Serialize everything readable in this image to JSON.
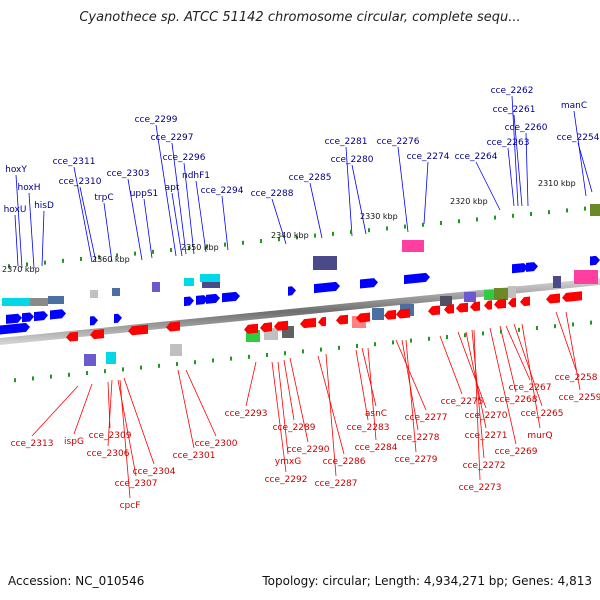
{
  "title": "Cyanothece sp. ATCC 51142 chromosome circular, complete sequ...",
  "accession": "Accession: NC_010546",
  "topology": "Topology: circular; Length: 4,934,271 bp; Genes: 4,813",
  "colors": {
    "forward": "#0000ff",
    "reverse": "#ff0000",
    "label_forward": "#00008b",
    "label_reverse": "#cc0000",
    "backbone": "#808080"
  },
  "tick_labels": [
    "2370 kbp",
    "2360 kbp",
    "2350 kbp",
    "2340 kbp",
    "2330 kbp",
    "2320 kbp",
    "2310 kbp"
  ],
  "top_labels": [
    "hoxY",
    "hoxH",
    "hoxU",
    "hisD",
    "cce_2311",
    "cce_2310",
    "trpC",
    "cce_2303",
    "uppS1",
    "cce_2299",
    "cce_2297",
    "cce_2296",
    "apt",
    "ndhF1",
    "cce_2294",
    "cce_2288",
    "cce_2285",
    "cce_2281",
    "cce_2280",
    "cce_2276",
    "cce_2274",
    "cce_2264",
    "cce_2263",
    "cce_2262",
    "cce_2261",
    "cce_2260",
    "manC",
    "cce_2254"
  ],
  "bottom_labels": [
    "cce_2313",
    "ispG",
    "cce_2309",
    "cce_2306",
    "cce_2307",
    "cpcF",
    "cce_2304",
    "cce_2301",
    "cce_2300",
    "cce_2293",
    "cce_2290",
    "cce_2289",
    "ymxG",
    "cce_2292",
    "cce_2286",
    "cce_2287",
    "cce_2283",
    "asnC",
    "cce_2284",
    "cce_2277",
    "cce_2278",
    "cce_2279",
    "cce_2275",
    "cce_2270",
    "cce_2271",
    "cce_2272",
    "cce_2273",
    "cce_2269",
    "cce_2268",
    "cce_2267",
    "cce_2265",
    "murQ",
    "cce_2258",
    "cce_2259"
  ]
}
